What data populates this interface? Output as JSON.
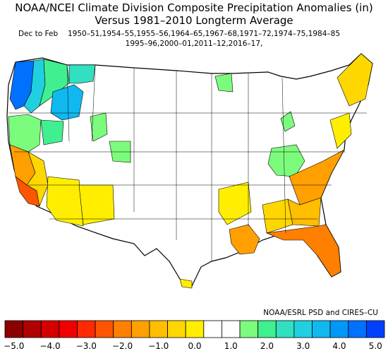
{
  "title": {
    "line1": "NOAA/NCEI Climate Division Composite Precipitation Anomalies (in)",
    "line2": "Versus 1981–2010 Longterm Average"
  },
  "period": "Dec to Feb",
  "years_line1": "1950–51,1954–55,1955–56,1964–65,1967–68,1971–72,1974–75,1984–85",
  "years_line2": "1995–96,2000–01,2011–12,2016–17,",
  "credit": "NOAA/ESRL PSD and CIRES–CU",
  "colorbar": {
    "colors": [
      "#8b0000",
      "#b00000",
      "#d40000",
      "#f00000",
      "#ff2a00",
      "#ff5500",
      "#ff7f00",
      "#ffa000",
      "#ffbe00",
      "#ffd700",
      "#ffee00",
      "#ffffff",
      "#ffffff",
      "#7cfc7c",
      "#40f090",
      "#30e0c0",
      "#20d0e0",
      "#10b8f0",
      "#0098f8",
      "#0070ff",
      "#0040ff"
    ],
    "tick_labels": [
      "−5.0",
      "−4.0",
      "−3.0",
      "−2.0",
      "−1.0",
      "0.0",
      "1.0",
      "2.0",
      "3.0",
      "4.0",
      "5.0"
    ]
  },
  "legend_scale_min": -5.0,
  "legend_scale_max": 5.0
}
